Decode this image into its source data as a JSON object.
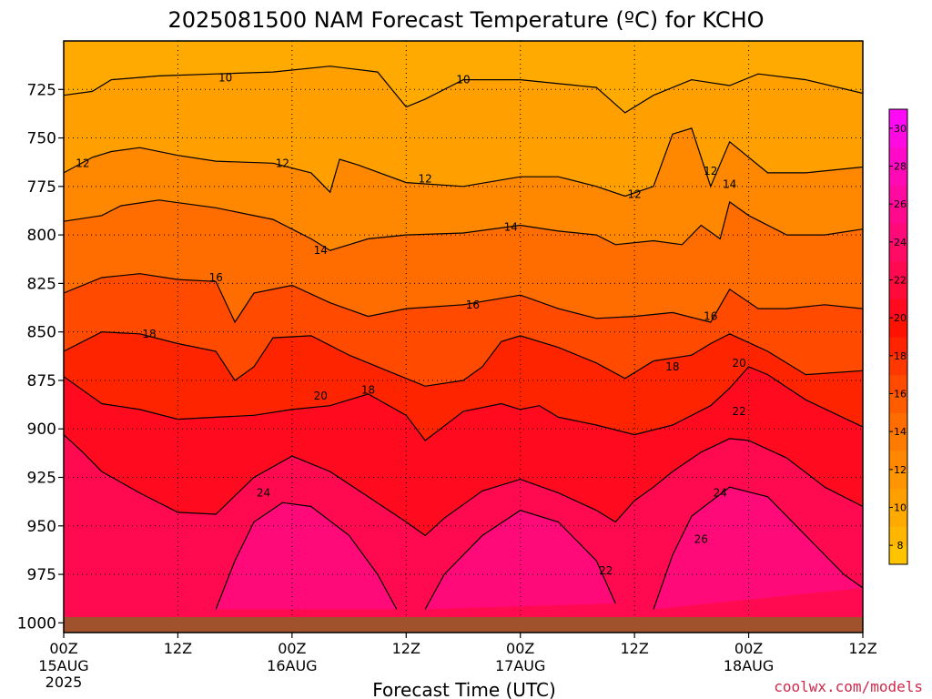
{
  "title": "2025081500 NAM Forecast Temperature (ºC) for KCHO",
  "xlabel": "Forecast Time (UTC)",
  "credit": "coolwx.com/models",
  "x_ticks": [
    {
      "label": "00Z",
      "sub": "15AUG",
      "year": "2025"
    },
    {
      "label": "12Z",
      "sub": "",
      "year": ""
    },
    {
      "label": "00Z",
      "sub": "16AUG",
      "year": ""
    },
    {
      "label": "12Z",
      "sub": "",
      "year": ""
    },
    {
      "label": "00Z",
      "sub": "17AUG",
      "year": ""
    },
    {
      "label": "12Z",
      "sub": "",
      "year": ""
    },
    {
      "label": "00Z",
      "sub": "18AUG",
      "year": ""
    },
    {
      "label": "12Z",
      "sub": "",
      "year": ""
    }
  ],
  "chart_data": {
    "type": "heatmap",
    "x_unit": "forecast hour",
    "x_range": [
      0,
      84
    ],
    "x_tick_hours": [
      0,
      12,
      24,
      36,
      48,
      60,
      72,
      84
    ],
    "y_unit": "hPa",
    "y_range": [
      1005,
      700
    ],
    "y_ticks": [
      725,
      750,
      775,
      800,
      825,
      850,
      875,
      900,
      925,
      950,
      975,
      1000
    ],
    "grid": true,
    "colorbar": {
      "placement": "right",
      "tick_labels": [
        "8",
        "10",
        "12",
        "14",
        "16",
        "18",
        "20",
        "22",
        "24",
        "26",
        "28",
        "30"
      ],
      "levels": [
        7,
        8,
        9,
        10,
        11,
        12,
        13,
        14,
        15,
        16,
        17,
        18,
        19,
        20,
        21,
        22,
        23,
        24,
        25,
        26,
        27,
        28,
        29,
        30,
        31
      ],
      "colors": [
        "#ffc400",
        "#ffb600",
        "#ffaa00",
        "#ffa000",
        "#ff9500",
        "#ff8800",
        "#ff7b00",
        "#ff6c00",
        "#ff5c00",
        "#ff4a00",
        "#ff3800",
        "#ff2400",
        "#ff1200",
        "#ff0a1e",
        "#ff0a3a",
        "#ff0a50",
        "#ff0a64",
        "#ff0a78",
        "#ff0a8c",
        "#ff0aa0",
        "#ff0ab4",
        "#ff0ac8",
        "#ff0ae0",
        "#ff0af4"
      ]
    },
    "contour_lines": [
      {
        "level": 10,
        "points": [
          [
            0,
            728
          ],
          [
            3,
            726
          ],
          [
            5,
            720
          ],
          [
            10,
            718
          ],
          [
            16,
            717
          ],
          [
            22,
            716
          ],
          [
            28,
            713
          ],
          [
            33,
            716
          ],
          [
            36,
            734
          ],
          [
            38,
            730
          ],
          [
            42,
            720
          ],
          [
            48,
            720
          ],
          [
            52,
            722
          ],
          [
            56,
            724
          ],
          [
            59,
            737
          ],
          [
            62,
            728
          ],
          [
            66,
            720
          ],
          [
            70,
            723
          ],
          [
            73,
            717
          ],
          [
            78,
            720
          ],
          [
            84,
            727
          ]
        ]
      },
      {
        "level": 12,
        "points": [
          [
            0,
            768
          ],
          [
            3,
            760
          ],
          [
            5,
            757
          ],
          [
            8,
            755
          ],
          [
            12,
            759
          ],
          [
            16,
            762
          ],
          [
            22,
            763
          ],
          [
            26,
            768
          ],
          [
            28,
            778
          ],
          [
            29,
            761
          ],
          [
            31,
            764
          ],
          [
            36,
            773
          ],
          [
            42,
            775
          ],
          [
            48,
            770
          ],
          [
            52,
            770
          ],
          [
            56,
            775
          ],
          [
            59,
            780
          ],
          [
            62,
            775
          ],
          [
            64,
            748
          ],
          [
            66,
            745
          ],
          [
            68,
            775
          ],
          [
            70,
            752
          ],
          [
            74,
            768
          ],
          [
            78,
            768
          ],
          [
            84,
            765
          ]
        ]
      },
      {
        "level": 14,
        "points": [
          [
            0,
            793
          ],
          [
            4,
            790
          ],
          [
            6,
            785
          ],
          [
            10,
            782
          ],
          [
            16,
            786
          ],
          [
            22,
            792
          ],
          [
            26,
            802
          ],
          [
            28,
            808
          ],
          [
            32,
            802
          ],
          [
            36,
            800
          ],
          [
            42,
            799
          ],
          [
            48,
            795
          ],
          [
            52,
            798
          ],
          [
            56,
            800
          ],
          [
            58,
            805
          ],
          [
            62,
            803
          ],
          [
            65,
            805
          ],
          [
            67,
            795
          ],
          [
            69,
            802
          ],
          [
            70,
            783
          ],
          [
            72,
            790
          ],
          [
            76,
            800
          ],
          [
            80,
            800
          ],
          [
            84,
            797
          ]
        ]
      },
      {
        "level": 16,
        "points": [
          [
            0,
            830
          ],
          [
            4,
            822
          ],
          [
            8,
            820
          ],
          [
            12,
            823
          ],
          [
            16,
            824
          ],
          [
            18,
            845
          ],
          [
            20,
            830
          ],
          [
            24,
            826
          ],
          [
            28,
            835
          ],
          [
            32,
            842
          ],
          [
            36,
            838
          ],
          [
            42,
            836
          ],
          [
            48,
            831
          ],
          [
            52,
            838
          ],
          [
            56,
            843
          ],
          [
            60,
            842
          ],
          [
            64,
            840
          ],
          [
            68,
            845
          ],
          [
            70,
            828
          ],
          [
            73,
            838
          ],
          [
            76,
            838
          ],
          [
            80,
            836
          ],
          [
            84,
            838
          ]
        ]
      },
      {
        "level": 18,
        "points": [
          [
            0,
            860
          ],
          [
            4,
            850
          ],
          [
            8,
            851
          ],
          [
            12,
            856
          ],
          [
            16,
            860
          ],
          [
            18,
            875
          ],
          [
            20,
            868
          ],
          [
            22,
            853
          ],
          [
            26,
            852
          ],
          [
            30,
            862
          ],
          [
            34,
            870
          ],
          [
            38,
            878
          ],
          [
            42,
            875
          ],
          [
            44,
            868
          ],
          [
            46,
            855
          ],
          [
            48,
            852
          ],
          [
            52,
            858
          ],
          [
            56,
            866
          ],
          [
            59,
            874
          ],
          [
            62,
            865
          ],
          [
            66,
            862
          ],
          [
            68,
            856
          ],
          [
            70,
            851
          ],
          [
            74,
            860
          ],
          [
            78,
            872
          ],
          [
            84,
            870
          ]
        ]
      },
      {
        "level": 20,
        "points": [
          [
            0,
            873
          ],
          [
            4,
            887
          ],
          [
            8,
            890
          ],
          [
            12,
            895
          ],
          [
            16,
            894
          ],
          [
            20,
            893
          ],
          [
            24,
            890
          ],
          [
            28,
            888
          ],
          [
            32,
            882
          ],
          [
            36,
            893
          ],
          [
            38,
            906
          ],
          [
            42,
            891
          ],
          [
            46,
            887
          ],
          [
            48,
            890
          ],
          [
            50,
            888
          ],
          [
            52,
            894
          ],
          [
            56,
            898
          ],
          [
            60,
            903
          ],
          [
            64,
            898
          ],
          [
            68,
            888
          ],
          [
            70,
            879
          ],
          [
            72,
            868
          ],
          [
            74,
            872
          ],
          [
            78,
            885
          ],
          [
            84,
            899
          ]
        ]
      },
      {
        "level": 22,
        "points": [
          [
            0,
            903
          ],
          [
            2,
            912
          ],
          [
            4,
            922
          ],
          [
            8,
            933
          ],
          [
            12,
            943
          ],
          [
            16,
            944
          ],
          [
            20,
            925
          ],
          [
            24,
            914
          ],
          [
            28,
            922
          ],
          [
            32,
            935
          ],
          [
            36,
            948
          ],
          [
            38,
            955
          ],
          [
            40,
            946
          ],
          [
            44,
            932
          ],
          [
            48,
            926
          ],
          [
            52,
            933
          ],
          [
            56,
            942
          ],
          [
            58,
            948
          ],
          [
            60,
            937
          ],
          [
            62,
            930
          ],
          [
            64,
            922
          ],
          [
            67,
            912
          ],
          [
            70,
            905
          ],
          [
            72,
            906
          ],
          [
            76,
            915
          ],
          [
            80,
            930
          ],
          [
            84,
            940
          ]
        ]
      },
      {
        "level": 24,
        "points": [
          [
            16,
            993
          ],
          [
            18,
            968
          ],
          [
            20,
            948
          ],
          [
            23,
            938
          ],
          [
            26,
            940
          ],
          [
            30,
            955
          ],
          [
            33,
            975
          ],
          [
            35,
            993
          ]
        ]
      },
      {
        "level": 24,
        "points": [
          [
            38,
            993
          ],
          [
            40,
            975
          ],
          [
            44,
            955
          ],
          [
            48,
            942
          ],
          [
            52,
            948
          ],
          [
            56,
            968
          ],
          [
            58,
            990
          ]
        ]
      },
      {
        "level": 24,
        "points": [
          [
            62,
            993
          ],
          [
            64,
            965
          ],
          [
            66,
            945
          ],
          [
            70,
            930
          ],
          [
            74,
            935
          ],
          [
            78,
            955
          ],
          [
            82,
            975
          ],
          [
            84,
            982
          ]
        ]
      }
    ],
    "contour_labels": [
      {
        "value": "10",
        "x": 17,
        "y": 719
      },
      {
        "value": "10",
        "x": 42,
        "y": 720
      },
      {
        "value": "12",
        "x": 2,
        "y": 763
      },
      {
        "value": "12",
        "x": 23,
        "y": 763
      },
      {
        "value": "12",
        "x": 38,
        "y": 771
      },
      {
        "value": "12",
        "x": 60,
        "y": 779
      },
      {
        "value": "12",
        "x": 68,
        "y": 767
      },
      {
        "value": "14",
        "x": 27,
        "y": 808
      },
      {
        "value": "14",
        "x": 47,
        "y": 796
      },
      {
        "value": "14",
        "x": 70,
        "y": 774
      },
      {
        "value": "16",
        "x": 16,
        "y": 822
      },
      {
        "value": "16",
        "x": 43,
        "y": 836
      },
      {
        "value": "16",
        "x": 68,
        "y": 842
      },
      {
        "value": "18",
        "x": 9,
        "y": 851
      },
      {
        "value": "18",
        "x": 32,
        "y": 880
      },
      {
        "value": "18",
        "x": 64,
        "y": 868
      },
      {
        "value": "20",
        "x": 27,
        "y": 883
      },
      {
        "value": "20",
        "x": 71,
        "y": 866
      },
      {
        "value": "22",
        "x": 71,
        "y": 891
      },
      {
        "value": "22",
        "x": 57,
        "y": 973
      },
      {
        "value": "24",
        "x": 21,
        "y": 933
      },
      {
        "value": "24",
        "x": 69,
        "y": 933
      },
      {
        "value": "26",
        "x": 67,
        "y": 957
      }
    ],
    "terrain": {
      "color": "#a0522d",
      "top_hpa": 997
    }
  }
}
